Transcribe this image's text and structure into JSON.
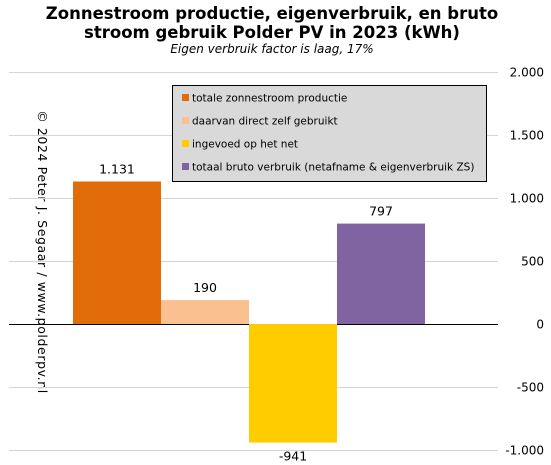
{
  "chart_data": {
    "type": "bar",
    "title_line1": "Zonnestroom productie, eigenverbruik,  en bruto",
    "title_line2": "stroom gebruik Polder PV in 2023 (kWh)",
    "subtitle": "Eigen verbruik factor is laag, 17%",
    "categories": [
      "totale zonnestroom productie",
      "daarvan direct zelf gebruikt",
      "ingevoed op het net",
      "totaal bruto verbruik (netafname & eigenverbruik ZS)"
    ],
    "values": [
      1131,
      190,
      -941,
      797
    ],
    "value_labels": [
      "1.131",
      "190",
      "-941",
      "797"
    ],
    "colors": [
      "#E36C0A",
      "#FAC090",
      "#FFCC00",
      "#8064A2"
    ],
    "ylim": [
      -1000,
      2000
    ],
    "yticks": [
      2000,
      1500,
      1000,
      500,
      0,
      -500,
      -1000
    ],
    "ytick_labels": [
      "2.000",
      "1.500",
      "1.000",
      "500",
      "0",
      "-500",
      "-1.000"
    ],
    "y_axis_side": "right",
    "grid": true,
    "legend_position": "top-right",
    "copyright": "© 2024 Peter J. Segaar / www.polderpv.nl"
  }
}
